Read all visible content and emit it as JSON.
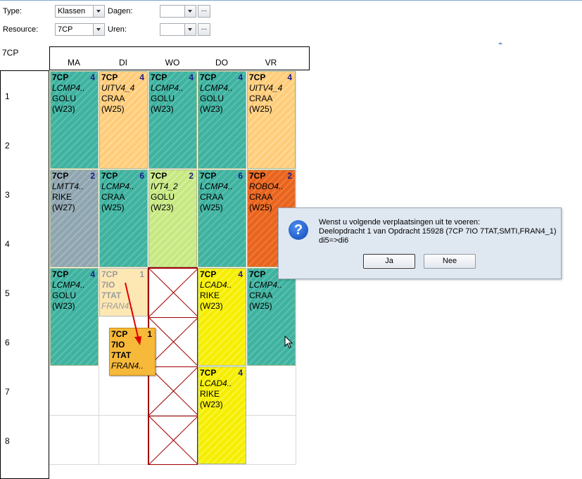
{
  "filters": {
    "type_label": "Type:",
    "type_value": "Klassen",
    "dagen_label": "Dagen:",
    "dagen_value": "",
    "resource_label": "Resource:",
    "resource_value": "7CP",
    "uren_label": "Uren:",
    "uren_value": "",
    "ellipsis": "..."
  },
  "schedule": {
    "resource": "7CP",
    "days": [
      "MA",
      "DI",
      "WO",
      "DO",
      "VR"
    ],
    "hours": [
      "1",
      "2",
      "3",
      "4",
      "5",
      "6",
      "7",
      "8"
    ],
    "cells": [
      {
        "title": "7CP",
        "count": "4",
        "course": "LCMP4..",
        "teacher": "GOLU",
        "weeks": "(W23)"
      },
      {
        "title": "7CP",
        "count": "4",
        "course": "UITV4_4",
        "teacher": "CRAA",
        "weeks": "(W25)"
      },
      {
        "title": "7CP",
        "count": "4",
        "course": "LCMP4..",
        "teacher": "GOLU",
        "weeks": "(W23)"
      },
      {
        "title": "7CP",
        "count": "4",
        "course": "LCMP4..",
        "teacher": "GOLU",
        "weeks": "(W23)"
      },
      {
        "title": "7CP",
        "count": "4",
        "course": "UITV4_4",
        "teacher": "CRAA",
        "weeks": "(W25)"
      },
      {
        "title": "7CP",
        "count": "2",
        "course": "LMTT4..",
        "teacher": "RIKE",
        "weeks": "(W27)"
      },
      {
        "title": "7CP",
        "count": "6",
        "course": "LCMP4..",
        "teacher": "CRAA",
        "weeks": "(W25)"
      },
      {
        "title": "7CP",
        "count": "2",
        "course": "IVT4_2",
        "teacher": "GOLU",
        "weeks": "(W23)"
      },
      {
        "title": "7CP",
        "count": "6",
        "course": "LCMP4..",
        "teacher": "CRAA",
        "weeks": "(W25)"
      },
      {
        "title": "7CP",
        "count": "2",
        "course": "ROBO4..",
        "teacher": "CRAA",
        "weeks": "(W25)"
      },
      {
        "title": "7CP",
        "count": "4",
        "course": "LCMP4..",
        "teacher": "GOLU",
        "weeks": "(W23)"
      },
      {
        "title": "7CP",
        "count": "4",
        "course": "LCAD4..",
        "teacher": "RIKE",
        "weeks": "(W23)"
      },
      {
        "title": "7CP",
        "count": "",
        "course": "LCMP4..",
        "teacher": "CRAA",
        "weeks": "(W25)"
      },
      {
        "title": "7CP",
        "count": "4",
        "course": "LCAD4..",
        "teacher": "RIKE",
        "weeks": "(W23)"
      }
    ],
    "ghost": {
      "title": "7CP",
      "count": "1",
      "line2": "7IO",
      "line3": "7TAT",
      "course": "FRAN4.."
    },
    "dragged": {
      "title": "7CP",
      "count": "1",
      "line2": "7IO",
      "line3": "7TAT",
      "course": "FRAN4.."
    }
  },
  "dialog": {
    "icon": "question-icon",
    "line1": "Wenst u volgende verplaatsingen uit te voeren:",
    "line2": "Deelopdracht 1 van Opdracht 15928 (7CP 7IO 7TAT,SMTI,FRAN4_1)",
    "line3": "di5=>di6",
    "yes_label": "Ja",
    "no_label": "Nee"
  }
}
